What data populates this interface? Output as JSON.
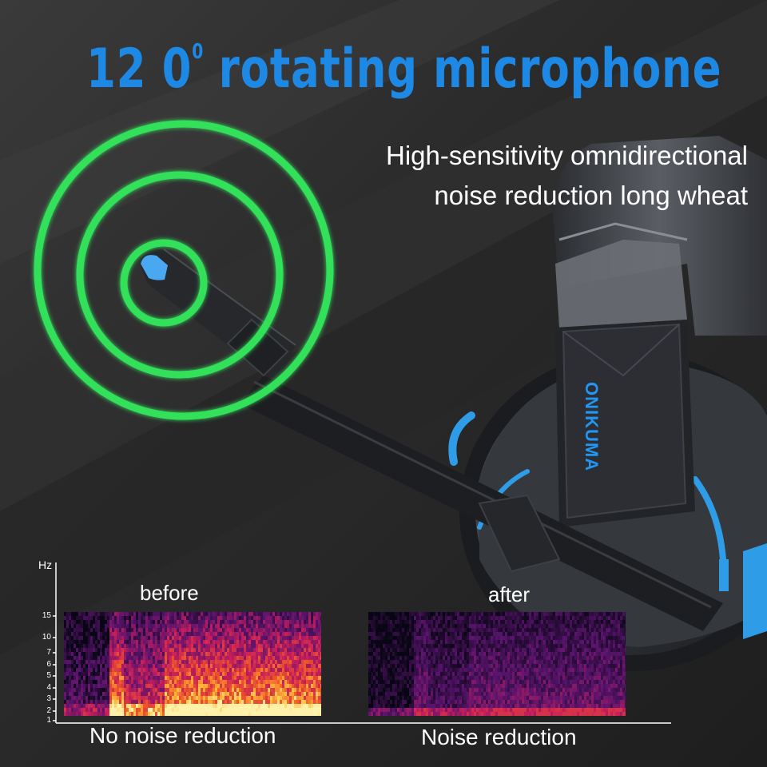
{
  "title": {
    "main": "12 0",
    "degree": "0",
    "rest": " rotating microphone"
  },
  "subtitle": {
    "line1": "High-sensitivity omnidirectional",
    "line2": "noise reduction long wheat"
  },
  "brand": "ONIKUMA",
  "spectrogram": {
    "axis_label": "Hz",
    "ticks": [
      "15",
      "10",
      "7",
      "6",
      "5",
      "4",
      "3",
      "2",
      "1"
    ],
    "before_label": "before",
    "after_label": "after",
    "before_caption": "No noise reduction",
    "after_caption": "Noise reduction"
  },
  "icons": [
    "sound-wave-rings-icon",
    "microphone-boom",
    "headset"
  ],
  "colors": {
    "accent_blue": "#1e88e5",
    "ring_green": "#33e05a",
    "background": "#2b2b2b"
  }
}
